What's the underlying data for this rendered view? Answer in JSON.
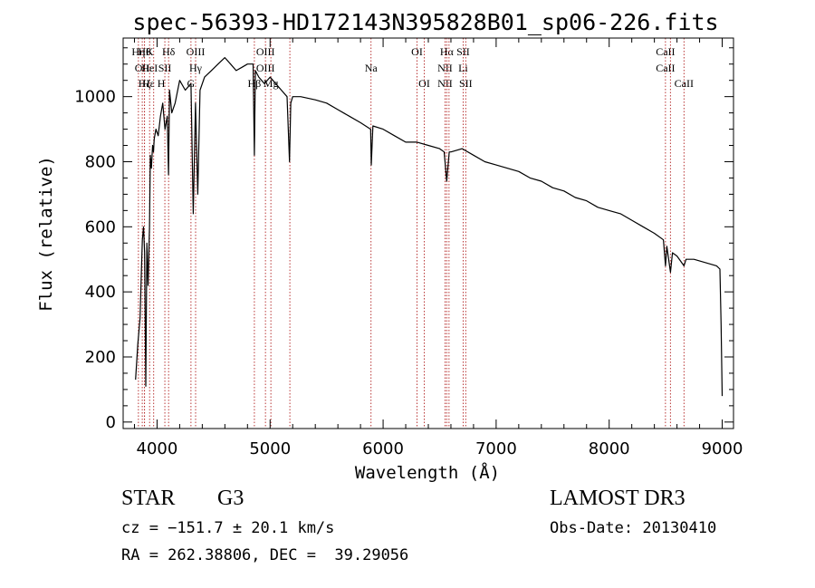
{
  "chart_data": {
    "type": "line",
    "title": "spec-56393-HD172143N395828B01_sp06-226.fits",
    "xlabel": "Wavelength (Å)",
    "ylabel": "Flux (relative)",
    "xlim": [
      3700,
      9100
    ],
    "ylim": [
      -20,
      1180
    ],
    "xticks": [
      4000,
      5000,
      6000,
      7000,
      8000,
      9000
    ],
    "xtick_labels": [
      "4000",
      "5000",
      "6000",
      "7000",
      "8000",
      "9000"
    ],
    "yticks": [
      0,
      200,
      400,
      600,
      800,
      1000
    ],
    "ytick_labels": [
      "0",
      "200",
      "400",
      "600",
      "800",
      "1000"
    ],
    "grid": false,
    "series": [
      {
        "name": "spectrum",
        "color": "#000000",
        "x": [
          3810,
          3830,
          3850,
          3860,
          3870,
          3880,
          3890,
          3900,
          3910,
          3920,
          3933,
          3940,
          3950,
          3960,
          3968,
          3975,
          3990,
          4010,
          4030,
          4050,
          4070,
          4090,
          4101,
          4110,
          4130,
          4160,
          4200,
          4250,
          4300,
          4320,
          4340,
          4360,
          4380,
          4420,
          4480,
          4540,
          4600,
          4650,
          4700,
          4750,
          4800,
          4850,
          4861,
          4870,
          4900,
          4950,
          5000,
          5050,
          5100,
          5150,
          5172,
          5183,
          5200,
          5270,
          5400,
          5500,
          5600,
          5700,
          5800,
          5890,
          5895,
          5910,
          6000,
          6100,
          6200,
          6300,
          6400,
          6500,
          6540,
          6563,
          6585,
          6600,
          6700,
          6800,
          6900,
          7000,
          7100,
          7200,
          7300,
          7400,
          7500,
          7600,
          7700,
          7800,
          7900,
          8000,
          8100,
          8200,
          8300,
          8400,
          8480,
          8498,
          8510,
          8542,
          8560,
          8600,
          8662,
          8680,
          8750,
          8850,
          8950,
          8980,
          8990,
          9000
        ],
        "values": [
          130,
          240,
          320,
          450,
          560,
          600,
          520,
          110,
          550,
          420,
          600,
          820,
          780,
          850,
          830,
          870,
          900,
          880,
          940,
          980,
          900,
          940,
          760,
          1020,
          950,
          980,
          1050,
          1020,
          1040,
          640,
          980,
          700,
          1020,
          1060,
          1080,
          1100,
          1120,
          1100,
          1080,
          1090,
          1100,
          1100,
          820,
          1080,
          1060,
          1040,
          1060,
          1040,
          1020,
          1000,
          800,
          980,
          1000,
          1000,
          990,
          980,
          960,
          940,
          920,
          900,
          790,
          910,
          900,
          880,
          860,
          860,
          850,
          840,
          830,
          740,
          830,
          830,
          840,
          820,
          800,
          790,
          780,
          770,
          750,
          740,
          720,
          710,
          690,
          680,
          660,
          650,
          640,
          620,
          600,
          580,
          560,
          480,
          540,
          460,
          520,
          510,
          480,
          500,
          500,
          490,
          480,
          470,
          300,
          80
        ]
      }
    ],
    "line_markers": [
      {
        "wavelength": 3835,
        "labels": [
          "Hη"
        ]
      },
      {
        "wavelength": 3869,
        "labels": [
          "",
          "OII"
        ]
      },
      {
        "wavelength": 3889,
        "labels": [
          "",
          "",
          "Hζ"
        ]
      },
      {
        "wavelength": 3889,
        "labels": [
          "Hθ"
        ]
      },
      {
        "wavelength": 3934,
        "labels": [
          "K",
          "HeI"
        ]
      },
      {
        "wavelength": 3970,
        "labels": [
          "",
          "",
          "Hε H"
        ]
      },
      {
        "wavelength": 4069,
        "labels": [
          "",
          "SII"
        ]
      },
      {
        "wavelength": 4102,
        "labels": [
          "Hδ"
        ]
      },
      {
        "wavelength": 4300,
        "labels": [
          "",
          "",
          "G"
        ]
      },
      {
        "wavelength": 4341,
        "labels": [
          "OIII",
          "Hγ"
        ]
      },
      {
        "wavelength": 4861,
        "labels": [
          "",
          "",
          "Hβ"
        ]
      },
      {
        "wavelength": 4959,
        "labels": [
          "OIII",
          "OIII"
        ]
      },
      {
        "wavelength": 5007,
        "labels": [
          "",
          "",
          "Mg"
        ]
      },
      {
        "wavelength": 5175,
        "labels": []
      },
      {
        "wavelength": 5893,
        "labels": [
          "",
          "Na"
        ]
      },
      {
        "wavelength": 6300,
        "labels": [
          "OI"
        ]
      },
      {
        "wavelength": 6364,
        "labels": [
          "",
          "",
          "OI"
        ]
      },
      {
        "wavelength": 6548,
        "labels": [
          "",
          "NII",
          "NII"
        ]
      },
      {
        "wavelength": 6563,
        "labels": [
          "Hα"
        ]
      },
      {
        "wavelength": 6583,
        "labels": []
      },
      {
        "wavelength": 6708,
        "labels": [
          "SII",
          "Li"
        ]
      },
      {
        "wavelength": 6731,
        "labels": [
          "",
          "",
          "SII"
        ]
      },
      {
        "wavelength": 8498,
        "labels": [
          "CaII",
          "CaII"
        ]
      },
      {
        "wavelength": 8542,
        "labels": []
      },
      {
        "wavelength": 8662,
        "labels": [
          "",
          "",
          "CaII"
        ]
      }
    ]
  },
  "info": {
    "object_class": "STAR",
    "subclass": "G3",
    "survey": "LAMOST DR3",
    "redshift_line": "cz = −151.7 ± 20.1 km/s",
    "obs_date": "Obs-Date: 20130410",
    "coords": "RA = 262.38806, DEC =  39.29056"
  }
}
